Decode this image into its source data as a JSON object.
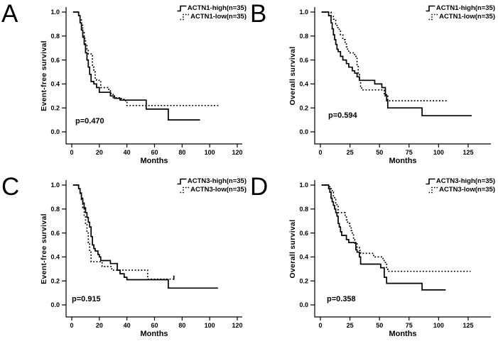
{
  "figure": {
    "background": "#ffffff",
    "ink_color": "#000000",
    "description_visible_text_only": "Four Kaplan-Meier survival panels A-D"
  },
  "chart_data": [
    {
      "type": "line",
      "subtype": "kaplan-meier-step",
      "panel_label": "A",
      "xlabel": "Months",
      "ylabel": "Event-free survival",
      "p_value": "p=0.470",
      "x_ticks": [
        0,
        20,
        40,
        60,
        80,
        100,
        120
      ],
      "y_ticks": [
        0.0,
        0.2,
        0.4,
        0.6,
        0.8,
        1.0
      ],
      "xlim": [
        0,
        127
      ],
      "ylim": [
        0.0,
        1.0
      ],
      "grid": false,
      "legend_position": "top-right",
      "series": [
        {
          "name": "ACTN1-high(n=35)",
          "style": "solid",
          "color": "#000000",
          "points": [
            [
              1,
              1.0
            ],
            [
              5,
              0.97
            ],
            [
              6,
              0.91
            ],
            [
              7,
              0.85
            ],
            [
              8,
              0.79
            ],
            [
              9,
              0.73
            ],
            [
              10,
              0.66
            ],
            [
              11,
              0.6
            ],
            [
              12,
              0.54
            ],
            [
              13,
              0.48
            ],
            [
              14,
              0.42
            ],
            [
              16,
              0.4
            ],
            [
              18,
              0.37
            ],
            [
              20,
              0.33
            ],
            [
              28,
              0.3
            ],
            [
              31,
              0.28
            ],
            [
              35,
              0.265
            ],
            [
              54,
              0.19
            ],
            [
              70,
              0.1
            ],
            [
              93,
              0.1
            ]
          ]
        },
        {
          "name": "ACTN1-low(n=35)",
          "style": "dotted",
          "color": "#000000",
          "points": [
            [
              1,
              1.0
            ],
            [
              5,
              0.97
            ],
            [
              6,
              0.94
            ],
            [
              7,
              0.89
            ],
            [
              8,
              0.83
            ],
            [
              9,
              0.78
            ],
            [
              10,
              0.73
            ],
            [
              11,
              0.69
            ],
            [
              12,
              0.65
            ],
            [
              15,
              0.54
            ],
            [
              16,
              0.5
            ],
            [
              17,
              0.45
            ],
            [
              18,
              0.43
            ],
            [
              21,
              0.37
            ],
            [
              26,
              0.355
            ],
            [
              28,
              0.32
            ],
            [
              30,
              0.285
            ],
            [
              36,
              0.27
            ],
            [
              38,
              0.26
            ],
            [
              40,
              0.22
            ],
            [
              107,
              0.22
            ]
          ]
        }
      ]
    },
    {
      "type": "line",
      "subtype": "kaplan-meier-step",
      "panel_label": "B",
      "xlabel": "Months",
      "ylabel": "Overall survival",
      "p_value": "p=0.594",
      "x_ticks": [
        0,
        25,
        50,
        75,
        100,
        125
      ],
      "y_ticks": [
        0.0,
        0.2,
        0.4,
        0.6,
        0.8,
        1.0
      ],
      "xlim": [
        0,
        144
      ],
      "ylim": [
        0.0,
        1.0
      ],
      "grid": false,
      "legend_position": "top-right",
      "series": [
        {
          "name": "ACTN1-high(n=35)",
          "style": "solid",
          "color": "#000000",
          "points": [
            [
              1,
              1.0
            ],
            [
              7,
              0.97
            ],
            [
              9,
              0.91
            ],
            [
              10,
              0.86
            ],
            [
              11,
              0.81
            ],
            [
              12,
              0.77
            ],
            [
              13,
              0.73
            ],
            [
              14,
              0.69
            ],
            [
              15,
              0.67
            ],
            [
              17,
              0.63
            ],
            [
              19,
              0.6
            ],
            [
              22,
              0.57
            ],
            [
              24,
              0.54
            ],
            [
              27,
              0.51
            ],
            [
              29,
              0.49
            ],
            [
              31,
              0.46
            ],
            [
              33,
              0.43
            ],
            [
              46,
              0.4
            ],
            [
              52,
              0.37
            ],
            [
              55,
              0.31
            ],
            [
              56,
              0.26
            ],
            [
              57,
              0.2
            ],
            [
              86,
              0.135
            ],
            [
              128,
              0.135
            ]
          ]
        },
        {
          "name": "ACTN1-low(n=35)",
          "style": "dotted",
          "color": "#000000",
          "points": [
            [
              1,
              1.0
            ],
            [
              9,
              0.97
            ],
            [
              11,
              0.94
            ],
            [
              13,
              0.9
            ],
            [
              14,
              0.87
            ],
            [
              16,
              0.84
            ],
            [
              17,
              0.81
            ],
            [
              19,
              0.77
            ],
            [
              21,
              0.74
            ],
            [
              22,
              0.71
            ],
            [
              23,
              0.68
            ],
            [
              24,
              0.66
            ],
            [
              29,
              0.63
            ],
            [
              31,
              0.55
            ],
            [
              32,
              0.48
            ],
            [
              33,
              0.43
            ],
            [
              34,
              0.38
            ],
            [
              35,
              0.35
            ],
            [
              54,
              0.3
            ],
            [
              57,
              0.26
            ],
            [
              107,
              0.26
            ]
          ]
        }
      ]
    },
    {
      "type": "line",
      "subtype": "kaplan-meier-step",
      "panel_label": "C",
      "xlabel": "Months",
      "ylabel": "Event-free survival",
      "p_value": "p=0.915",
      "x_ticks": [
        0,
        20,
        40,
        60,
        80,
        100,
        120
      ],
      "y_ticks": [
        0.0,
        0.2,
        0.4,
        0.6,
        0.8,
        1.0
      ],
      "xlim": [
        0,
        127
      ],
      "ylim": [
        0.0,
        1.0
      ],
      "grid": false,
      "legend_position": "top-right",
      "series": [
        {
          "name": "ACTN3-high(n=35)",
          "style": "solid",
          "color": "#000000",
          "points": [
            [
              1,
              1.0
            ],
            [
              5,
              0.97
            ],
            [
              6,
              0.93
            ],
            [
              7,
              0.89
            ],
            [
              8,
              0.85
            ],
            [
              9,
              0.81
            ],
            [
              10,
              0.77
            ],
            [
              11,
              0.73
            ],
            [
              12,
              0.69
            ],
            [
              13,
              0.65
            ],
            [
              14,
              0.57
            ],
            [
              15,
              0.5
            ],
            [
              16,
              0.47
            ],
            [
              17,
              0.45
            ],
            [
              19,
              0.42
            ],
            [
              20,
              0.4
            ],
            [
              21,
              0.37
            ],
            [
              28,
              0.345
            ],
            [
              33,
              0.29
            ],
            [
              35,
              0.26
            ],
            [
              38,
              0.23
            ],
            [
              40,
              0.21
            ],
            [
              70,
              0.14
            ],
            [
              106,
              0.14
            ]
          ]
        },
        {
          "name": "ACTN3-low(n=35)",
          "style": "dotted",
          "color": "#000000",
          "end_tick": true,
          "points": [
            [
              1,
              1.0
            ],
            [
              5,
              0.97
            ],
            [
              6,
              0.94
            ],
            [
              7,
              0.88
            ],
            [
              8,
              0.81
            ],
            [
              9,
              0.74
            ],
            [
              10,
              0.67
            ],
            [
              11,
              0.6
            ],
            [
              12,
              0.52
            ],
            [
              13,
              0.44
            ],
            [
              14,
              0.36
            ],
            [
              22,
              0.32
            ],
            [
              29,
              0.29
            ],
            [
              55,
              0.215
            ],
            [
              74,
              0.215
            ]
          ]
        }
      ]
    },
    {
      "type": "line",
      "subtype": "kaplan-meier-step",
      "panel_label": "D",
      "xlabel": "Months",
      "ylabel": "Overall survival",
      "p_value": "p=0.358",
      "x_ticks": [
        0,
        25,
        50,
        75,
        100,
        125
      ],
      "y_ticks": [
        0.0,
        0.2,
        0.4,
        0.6,
        0.8,
        1.0
      ],
      "xlim": [
        0,
        144
      ],
      "ylim": [
        0.0,
        1.0
      ],
      "grid": false,
      "legend_position": "top-right",
      "series": [
        {
          "name": "ACTN3-high(n=35)",
          "style": "solid",
          "color": "#000000",
          "points": [
            [
              1,
              1.0
            ],
            [
              7,
              0.97
            ],
            [
              8,
              0.94
            ],
            [
              9,
              0.89
            ],
            [
              10,
              0.86
            ],
            [
              11,
              0.83
            ],
            [
              12,
              0.8
            ],
            [
              13,
              0.77
            ],
            [
              14,
              0.74
            ],
            [
              15,
              0.68
            ],
            [
              16,
              0.65
            ],
            [
              17,
              0.61
            ],
            [
              18,
              0.58
            ],
            [
              22,
              0.545
            ],
            [
              24,
              0.52
            ],
            [
              30,
              0.46
            ],
            [
              31,
              0.44
            ],
            [
              33,
              0.4
            ],
            [
              34,
              0.34
            ],
            [
              51,
              0.31
            ],
            [
              54,
              0.23
            ],
            [
              56,
              0.18
            ],
            [
              86,
              0.125
            ],
            [
              106,
              0.125
            ]
          ]
        },
        {
          "name": "ACTN3-low(n=35)",
          "style": "dotted",
          "color": "#000000",
          "points": [
            [
              1,
              1.0
            ],
            [
              8,
              0.97
            ],
            [
              10,
              0.94
            ],
            [
              11,
              0.91
            ],
            [
              12,
              0.88
            ],
            [
              13,
              0.85
            ],
            [
              14,
              0.82
            ],
            [
              15,
              0.77
            ],
            [
              21,
              0.74
            ],
            [
              22,
              0.71
            ],
            [
              23,
              0.68
            ],
            [
              25,
              0.65
            ],
            [
              26,
              0.62
            ],
            [
              27,
              0.6
            ],
            [
              28,
              0.545
            ],
            [
              29,
              0.51
            ],
            [
              31,
              0.48
            ],
            [
              33,
              0.455
            ],
            [
              34,
              0.43
            ],
            [
              45,
              0.4
            ],
            [
              53,
              0.37
            ],
            [
              55,
              0.345
            ],
            [
              56,
              0.3
            ],
            [
              57,
              0.28
            ],
            [
              127,
              0.28
            ]
          ]
        }
      ]
    }
  ]
}
